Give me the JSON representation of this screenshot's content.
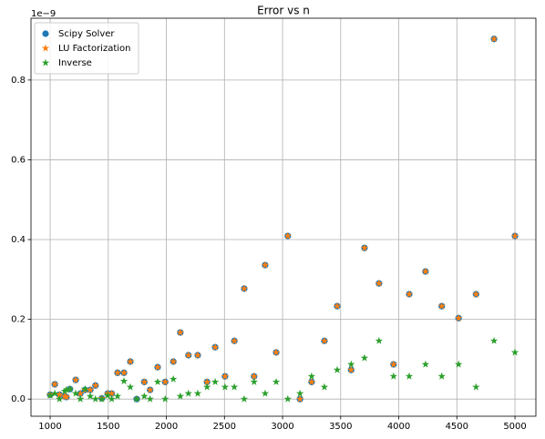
{
  "chart_data": {
    "type": "scatter",
    "title": "Error vs n",
    "offset_label": "1e−9",
    "x": [
      1000,
      1040,
      1080,
      1125,
      1140,
      1170,
      1220,
      1260,
      1300,
      1345,
      1390,
      1445,
      1495,
      1530,
      1580,
      1635,
      1690,
      1745,
      1810,
      1860,
      1925,
      1990,
      2060,
      2120,
      2190,
      2270,
      2350,
      2420,
      2505,
      2585,
      2670,
      2755,
      2850,
      2945,
      3045,
      3150,
      3250,
      3360,
      3470,
      3590,
      3705,
      3830,
      3955,
      4090,
      4230,
      4370,
      4515,
      4665,
      4820,
      5000
    ],
    "series": [
      {
        "name": "Scipy Solver",
        "color": "#1f77b4",
        "marker": "circle",
        "values": [
          0.011,
          0.037,
          0.011,
          0.007,
          0.005,
          0.025,
          0.048,
          0.014,
          0.023,
          0.023,
          0.034,
          0.002,
          0.014,
          0.014,
          0.066,
          0.066,
          0.094,
          0.0,
          0.043,
          0.023,
          0.08,
          0.043,
          0.094,
          0.167,
          0.11,
          0.11,
          0.043,
          0.13,
          0.057,
          0.146,
          0.277,
          0.057,
          0.336,
          0.117,
          0.409,
          0.0,
          0.043,
          0.146,
          0.233,
          0.073,
          0.379,
          0.29,
          0.087,
          0.263,
          0.32,
          0.233,
          0.203,
          0.263,
          0.903,
          0.409
        ]
      },
      {
        "name": "LU Factorization",
        "color": "#ff7f0e",
        "marker": "star",
        "values": [
          0.011,
          0.037,
          0.011,
          0.007,
          0.005,
          0.025,
          0.048,
          0.014,
          0.023,
          0.023,
          0.034,
          0.002,
          0.014,
          0.014,
          0.066,
          0.066,
          0.094,
          0.0,
          0.043,
          0.023,
          0.08,
          0.043,
          0.094,
          0.167,
          0.11,
          0.11,
          0.043,
          0.13,
          0.057,
          0.146,
          0.277,
          0.057,
          0.336,
          0.117,
          0.409,
          0.0,
          0.043,
          0.146,
          0.233,
          0.073,
          0.379,
          0.29,
          0.087,
          0.263,
          0.32,
          0.233,
          0.203,
          0.263,
          0.903,
          0.409
        ]
      },
      {
        "name": "Inverse",
        "color": "#2ca02c",
        "marker": "star",
        "values": [
          0.009,
          0.014,
          0.0,
          0.02,
          0.023,
          0.025,
          0.014,
          0.0,
          0.025,
          0.007,
          0.0,
          0.0,
          0.009,
          0.0,
          0.007,
          0.045,
          0.03,
          0.0,
          0.007,
          0.0,
          0.043,
          0.0,
          0.05,
          0.007,
          0.014,
          0.014,
          0.03,
          0.043,
          0.03,
          0.03,
          0.0,
          0.043,
          0.014,
          0.043,
          0.0,
          0.014,
          0.057,
          0.03,
          0.073,
          0.087,
          0.103,
          0.146,
          0.057,
          0.057,
          0.087,
          0.057,
          0.087,
          0.03,
          0.146,
          0.117
        ]
      }
    ],
    "xlim": [
      835,
      5180
    ],
    "ylim": [
      -0.043,
      0.955
    ],
    "xticks": [
      1000,
      1500,
      2000,
      2500,
      3000,
      3500,
      4000,
      4500,
      5000
    ],
    "yticks": [
      {
        "value": 0,
        "label": "0.0"
      },
      {
        "value": 0.2,
        "label": "0.2"
      },
      {
        "value": 0.4,
        "label": "0.4"
      },
      {
        "value": 0.6,
        "label": "0.6"
      },
      {
        "value": 0.8,
        "label": "0.8"
      }
    ],
    "grid": true,
    "legend": "upper left"
  }
}
